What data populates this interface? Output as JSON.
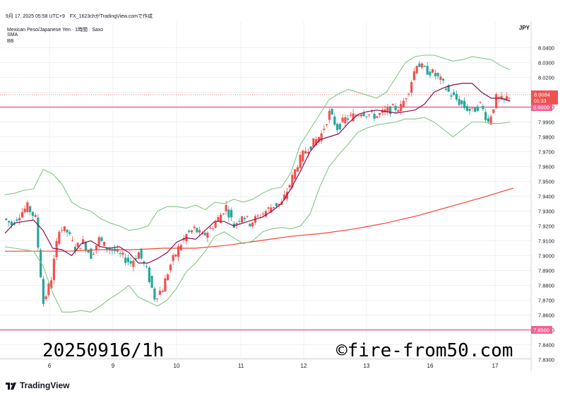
{
  "header": {
    "title": "9月 17, 2025 05:58 UTC+9　FX_1623chがTradingView.comで作成",
    "instrument": "Mexican Peso/Japanese Yen · 1時間 · Saxo",
    "indicators": [
      "SMA",
      "BB"
    ]
  },
  "currency": "JPY",
  "watermark": {
    "left": "20250916/1h",
    "right": "©fire-from50.com"
  },
  "footer": {
    "brand": "TradingView"
  },
  "colors": {
    "up": "#ef5350",
    "down": "#26a69a",
    "sma_long": "#f44336",
    "sma_short": "#880e4f",
    "bb": "#81c784",
    "hline": "#f06292",
    "grid": "#eef0f3"
  },
  "chart_data": {
    "type": "line",
    "title": "Mexican Peso/Japanese Yen · 1時間 · Saxo",
    "ylim": [
      7.825,
      8.05
    ],
    "y_ticks": [
      "8.0400",
      "8.0300",
      "8.0200",
      "8.0100",
      "8.0000",
      "7.9900",
      "7.9800",
      "7.9700",
      "7.9600",
      "7.9500",
      "7.9400",
      "7.9300",
      "7.9200",
      "7.9100",
      "7.9000",
      "7.8900",
      "7.8800",
      "7.8700",
      "7.8600",
      "7.8500",
      "7.8400",
      "7.8300"
    ],
    "x_ticks": [
      "6",
      "9",
      "10",
      "11",
      "12",
      "13",
      "16",
      "17"
    ],
    "current_price": {
      "value": "8.0084",
      "countdown": "01:33"
    },
    "horizontal_levels": [
      {
        "value": 8.0,
        "label": "8.0000"
      },
      {
        "value": 7.85,
        "label": "7.8500"
      }
    ],
    "series": [
      {
        "name": "SMA",
        "style": "long",
        "x": [
          0,
          20,
          40,
          60,
          80,
          100,
          120,
          140,
          160,
          180,
          200,
          220,
          240,
          260,
          280,
          300,
          320
        ],
        "y": [
          7.903,
          7.903,
          7.903,
          7.904,
          7.904,
          7.905,
          7.905,
          7.907,
          7.91,
          7.913,
          7.915,
          7.918,
          7.922,
          7.927,
          7.933,
          7.939,
          7.9455
        ]
      },
      {
        "name": "SMA",
        "style": "short",
        "x": [
          0,
          6,
          12,
          18,
          24,
          30,
          36,
          42,
          48,
          54,
          60,
          66,
          72,
          78,
          84,
          90,
          96,
          102,
          108,
          114,
          120,
          126,
          132,
          138,
          144,
          150,
          156,
          162,
          168,
          174,
          180,
          186,
          192,
          198,
          204,
          210,
          216,
          222,
          228,
          234,
          240,
          246,
          252,
          258,
          264,
          270,
          276,
          282,
          288,
          294,
          300,
          306,
          312,
          318
        ],
        "y": [
          7.915,
          7.922,
          7.923,
          7.924,
          7.917,
          7.905,
          7.904,
          7.9,
          7.908,
          7.91,
          7.906,
          7.905,
          7.906,
          7.902,
          7.895,
          7.895,
          7.898,
          7.902,
          7.909,
          7.912,
          7.911,
          7.917,
          7.923,
          7.923,
          7.92,
          7.922,
          7.924,
          7.926,
          7.93,
          7.935,
          7.945,
          7.957,
          7.97,
          7.978,
          7.98,
          7.982,
          7.989,
          7.995,
          7.997,
          7.998,
          7.997,
          7.996,
          7.997,
          7.998,
          8.002,
          8.01,
          8.013,
          8.015,
          8.016,
          8.016,
          8.01,
          8.006,
          8.006,
          8.004
        ]
      },
      {
        "name": "BB",
        "style": "band_upper",
        "x": [
          0,
          6,
          12,
          18,
          24,
          30,
          36,
          42,
          48,
          54,
          60,
          66,
          72,
          78,
          84,
          90,
          96,
          102,
          108,
          114,
          120,
          126,
          132,
          138,
          144,
          150,
          156,
          162,
          168,
          174,
          180,
          186,
          192,
          198,
          204,
          210,
          216,
          222,
          228,
          234,
          240,
          246,
          252,
          258,
          264,
          270,
          276,
          282,
          288,
          294,
          300,
          306,
          312,
          318
        ],
        "y": [
          7.941,
          7.942,
          7.944,
          7.945,
          7.958,
          7.955,
          7.948,
          7.936,
          7.932,
          7.93,
          7.925,
          7.922,
          7.92,
          7.917,
          7.918,
          7.92,
          7.93,
          7.933,
          7.933,
          7.932,
          7.934,
          7.931,
          7.936,
          7.935,
          7.938,
          7.936,
          7.938,
          7.942,
          7.945,
          7.946,
          7.956,
          7.975,
          7.985,
          7.995,
          8.005,
          8.009,
          8.012,
          8.01,
          8.008,
          8.006,
          8.01,
          8.02,
          8.03,
          8.034,
          8.035,
          8.035,
          8.033,
          8.031,
          8.032,
          8.034,
          8.033,
          8.032,
          8.028,
          8.025
        ]
      },
      {
        "name": "BB",
        "style": "band_lower",
        "x": [
          0,
          6,
          12,
          18,
          24,
          30,
          36,
          42,
          48,
          54,
          60,
          66,
          72,
          78,
          84,
          90,
          96,
          102,
          108,
          114,
          120,
          126,
          132,
          138,
          144,
          150,
          156,
          162,
          168,
          174,
          180,
          186,
          192,
          198,
          204,
          210,
          216,
          222,
          228,
          234,
          240,
          246,
          252,
          258,
          264,
          270,
          276,
          282,
          288,
          294,
          300,
          306,
          312,
          318
        ],
        "y": [
          7.906,
          7.905,
          7.904,
          7.903,
          7.893,
          7.875,
          7.862,
          7.862,
          7.863,
          7.862,
          7.866,
          7.871,
          7.875,
          7.88,
          7.872,
          7.869,
          7.866,
          7.87,
          7.878,
          7.889,
          7.895,
          7.903,
          7.913,
          7.916,
          7.912,
          7.908,
          7.91,
          7.916,
          7.918,
          7.919,
          7.918,
          7.92,
          7.928,
          7.946,
          7.96,
          7.968,
          7.975,
          7.983,
          7.986,
          7.988,
          7.989,
          7.99,
          7.992,
          7.992,
          7.993,
          7.99,
          7.985,
          7.98,
          7.985,
          7.99,
          7.99,
          7.989,
          7.989,
          7.99
        ]
      },
      {
        "name": "Price",
        "style": "close",
        "x": [
          0,
          5,
          10,
          15,
          20,
          25,
          30,
          35,
          40,
          45,
          50,
          55,
          60,
          65,
          70,
          75,
          80,
          85,
          90,
          95,
          100,
          105,
          110,
          115,
          120,
          125,
          130,
          135,
          140,
          145,
          150,
          155,
          160,
          165,
          170,
          175,
          180,
          185,
          190,
          195,
          200,
          205,
          210,
          215,
          220,
          225,
          230,
          235,
          240,
          245,
          250,
          255,
          260,
          265,
          270,
          275,
          280,
          285,
          290,
          295,
          300,
          305,
          310,
          315,
          318
        ],
        "y": [
          7.925,
          7.921,
          7.928,
          7.933,
          7.925,
          7.868,
          7.885,
          7.919,
          7.916,
          7.905,
          7.909,
          7.9,
          7.911,
          7.905,
          7.903,
          7.899,
          7.895,
          7.902,
          7.89,
          7.872,
          7.878,
          7.894,
          7.905,
          7.914,
          7.918,
          7.913,
          7.918,
          7.925,
          7.933,
          7.92,
          7.928,
          7.922,
          7.926,
          7.93,
          7.934,
          7.935,
          7.948,
          7.962,
          7.971,
          7.976,
          7.982,
          7.996,
          7.986,
          7.992,
          7.994,
          7.997,
          7.995,
          7.994,
          7.997,
          7.999,
          8.0,
          8.012,
          8.03,
          8.025,
          8.023,
          8.018,
          8.01,
          8.005,
          8.0,
          7.997,
          8.002,
          7.99,
          8.006,
          8.004,
          8.008
        ]
      }
    ]
  }
}
